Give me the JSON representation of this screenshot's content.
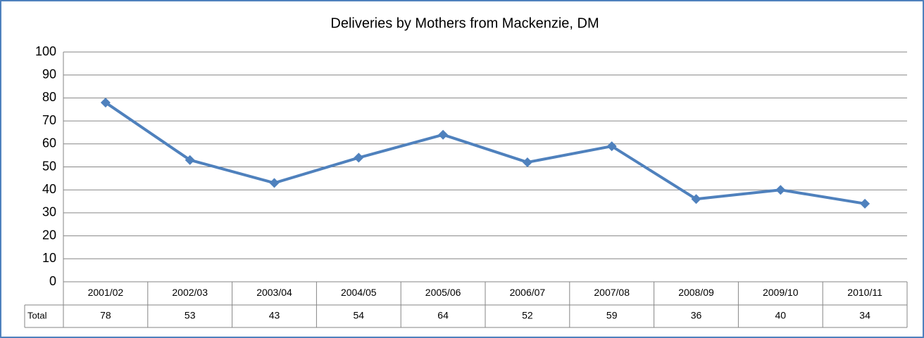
{
  "chart_data": {
    "type": "line",
    "title": "Deliveries by Mothers from Mackenzie, DM",
    "categories": [
      "2001/02",
      "2002/03",
      "2003/04",
      "2004/05",
      "2005/06",
      "2006/07",
      "2007/08",
      "2008/09",
      "2009/10",
      "2010/11"
    ],
    "series": [
      {
        "name": "Total",
        "color": "#4f81bd",
        "values": [
          78,
          53,
          43,
          54,
          64,
          52,
          59,
          36,
          40,
          34
        ]
      }
    ],
    "ylim": [
      0,
      100
    ],
    "yticks": [
      0,
      10,
      20,
      30,
      40,
      50,
      60,
      70,
      80,
      90,
      100
    ],
    "grid": true
  }
}
